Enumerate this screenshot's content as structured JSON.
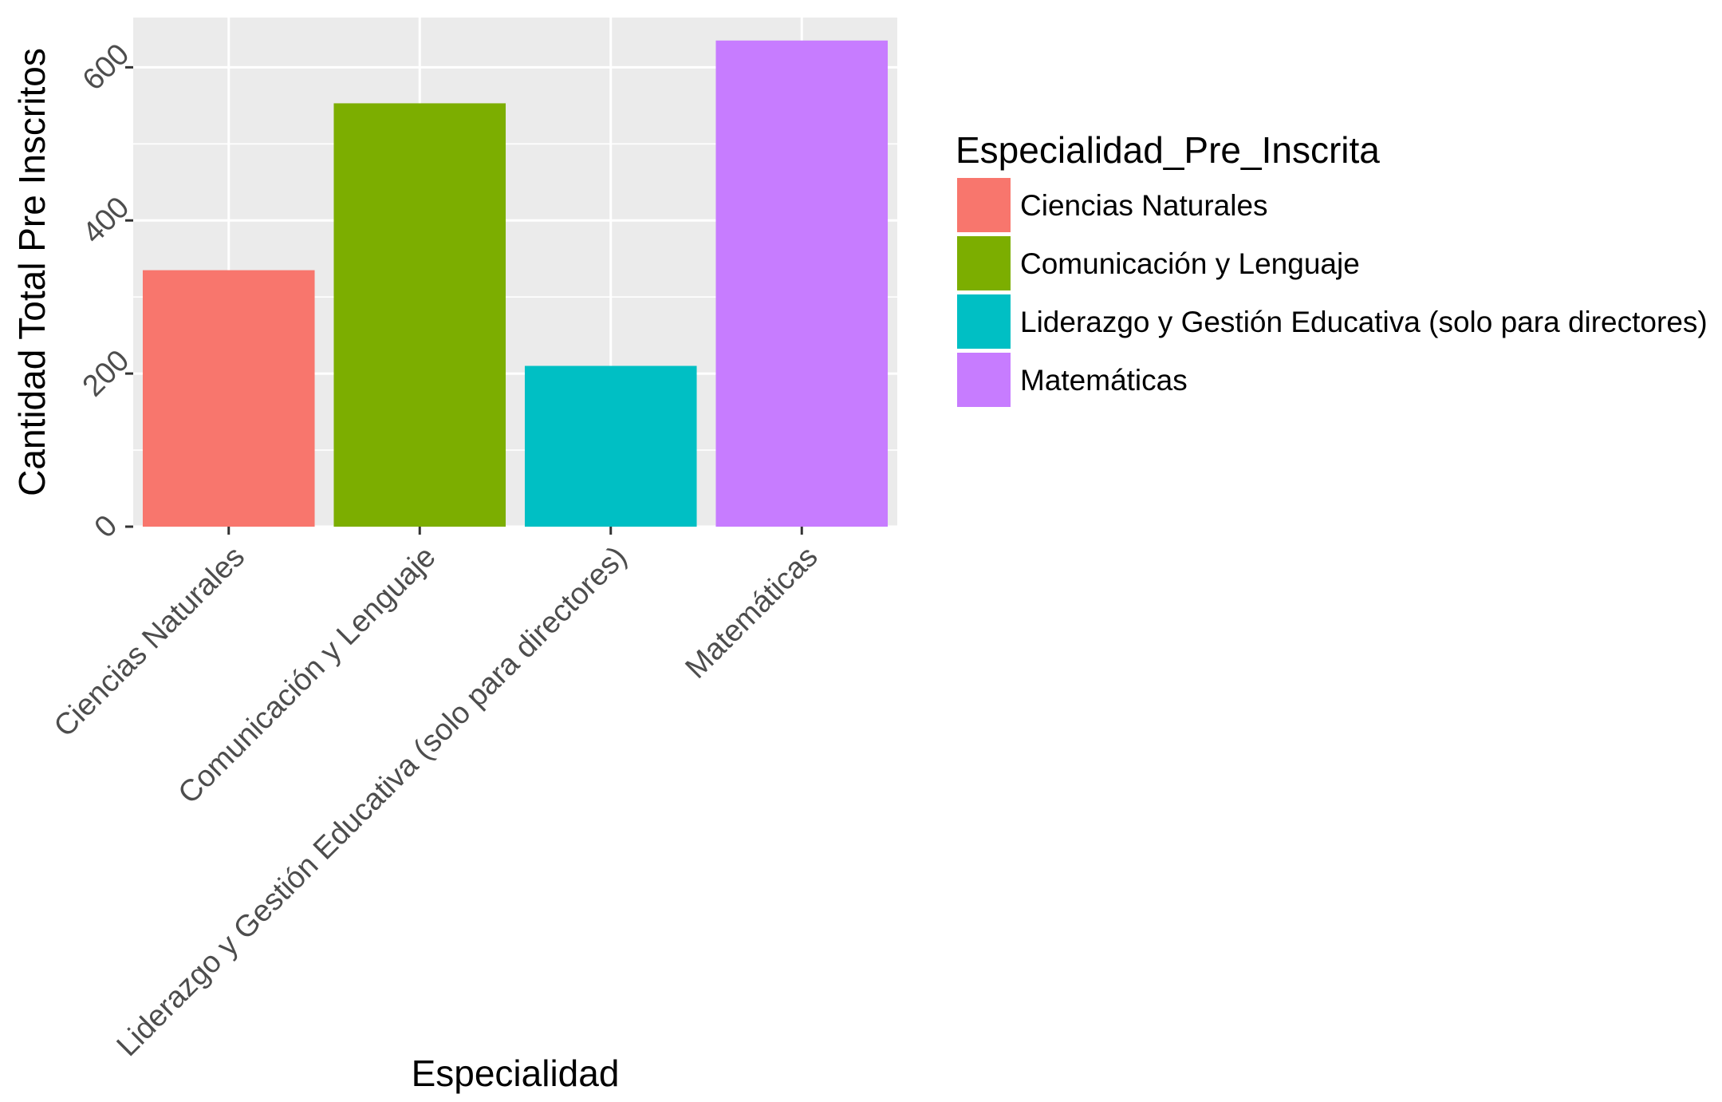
{
  "chart_data": {
    "type": "bar",
    "title": "",
    "xlabel": "Especialidad",
    "ylabel": "Cantidad Total Pre Inscritos",
    "categories": [
      "Ciencias Naturales",
      "Comunicación y Lenguaje",
      "Liderazgo y Gestión Educativa (solo para directores)",
      "Matemáticas"
    ],
    "values": [
      335,
      553,
      210,
      635
    ],
    "colors": [
      "#F8766D",
      "#7CAE00",
      "#00BFC4",
      "#C77CFF"
    ],
    "ylim": [
      0,
      665
    ],
    "yticks": [
      0,
      200,
      400,
      600
    ],
    "grid": true,
    "panel_background": "#EBEBEB",
    "legend": {
      "title": "Especialidad_Pre_Inscrita",
      "position": "right",
      "entries": [
        "Ciencias Naturales",
        "Comunicación y Lenguaje",
        "Liderazgo y Gestión Educativa (solo para directores)",
        "Matemáticas"
      ]
    }
  }
}
